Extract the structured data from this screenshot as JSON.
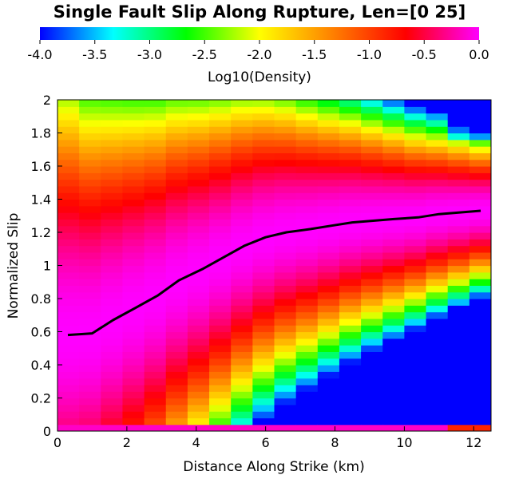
{
  "chart_data": {
    "type": "heatmap",
    "title": "Single Fault Slip Along Rupture, Len=[0 25]",
    "xlabel": "Distance Along Strike (km)",
    "ylabel": "Normalized Slip",
    "xlim": [
      0,
      12.5
    ],
    "ylim": [
      0,
      2
    ],
    "x_ticks": [
      "0",
      "2",
      "4",
      "6",
      "8",
      "10",
      "12"
    ],
    "y_ticks": [
      "0",
      "0.2",
      "0.4",
      "0.6",
      "0.8",
      "1",
      "1.2",
      "1.4",
      "1.6",
      "1.8",
      "2"
    ],
    "colorbar": {
      "label": "Log10(Density)",
      "range": [
        -4.0,
        0.0
      ],
      "ticks": [
        "-4.0",
        "-3.5",
        "-3.0",
        "-2.5",
        "-2.0",
        "-1.5",
        "-1.0",
        "-0.5",
        "0.0"
      ],
      "colormap": [
        "#0000ff",
        "#00ffff",
        "#00ff00",
        "#ffff00",
        "#ff8000",
        "#ff0000",
        "#ff00ff"
      ]
    },
    "heatmap_grid": {
      "x_bin_width_km": 0.625,
      "y_bin_height": 0.04,
      "columns": 20,
      "rows": 50,
      "description": "log10 density of slip per distance bin; highest density (magenta) along the mean curve, decreasing away from it"
    },
    "series": [
      {
        "x": [
          0.3,
          1.0,
          1.6,
          2.3,
          2.9,
          3.5,
          4.2,
          4.8,
          5.4,
          6.0,
          6.6,
          7.3,
          7.9,
          8.5,
          9.1,
          9.7,
          10.4,
          11.0,
          11.6,
          12.2
        ],
        "y": [
          0.58,
          0.59,
          0.67,
          0.75,
          0.82,
          0.91,
          0.98,
          1.05,
          1.12,
          1.17,
          1.2,
          1.22,
          1.24,
          1.26,
          1.27,
          1.28,
          1.29,
          1.31,
          1.32,
          1.33
        ]
      }
    ]
  }
}
